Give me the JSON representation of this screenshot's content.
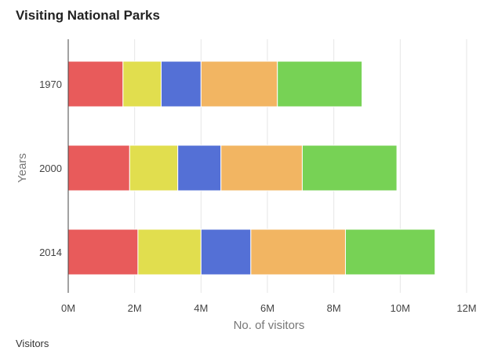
{
  "title": "Visiting National Parks",
  "legend_title": "Visitors",
  "colors": [
    "#e85b5b",
    "#e1de4e",
    "#5470d6",
    "#f2b562",
    "#77d255"
  ],
  "chart_data": {
    "type": "bar",
    "orientation": "horizontal",
    "stacked": true,
    "categories": [
      "1970",
      "2000",
      "2014"
    ],
    "series": [
      {
        "values": [
          1.65,
          1.85,
          2.1
        ]
      },
      {
        "values": [
          1.15,
          1.45,
          1.9
        ]
      },
      {
        "values": [
          1.2,
          1.3,
          1.5
        ]
      },
      {
        "values": [
          2.3,
          2.45,
          2.85
        ]
      },
      {
        "values": [
          2.55,
          2.85,
          2.7
        ]
      }
    ],
    "xlabel": "No. of visitors",
    "ylabel": "Years",
    "xlim": [
      0,
      12
    ],
    "xtick_values": [
      0,
      2,
      4,
      6,
      8,
      10,
      12
    ],
    "xticks": [
      "0M",
      "2M",
      "4M",
      "6M",
      "8M",
      "10M",
      "12M"
    ],
    "grid": true
  }
}
